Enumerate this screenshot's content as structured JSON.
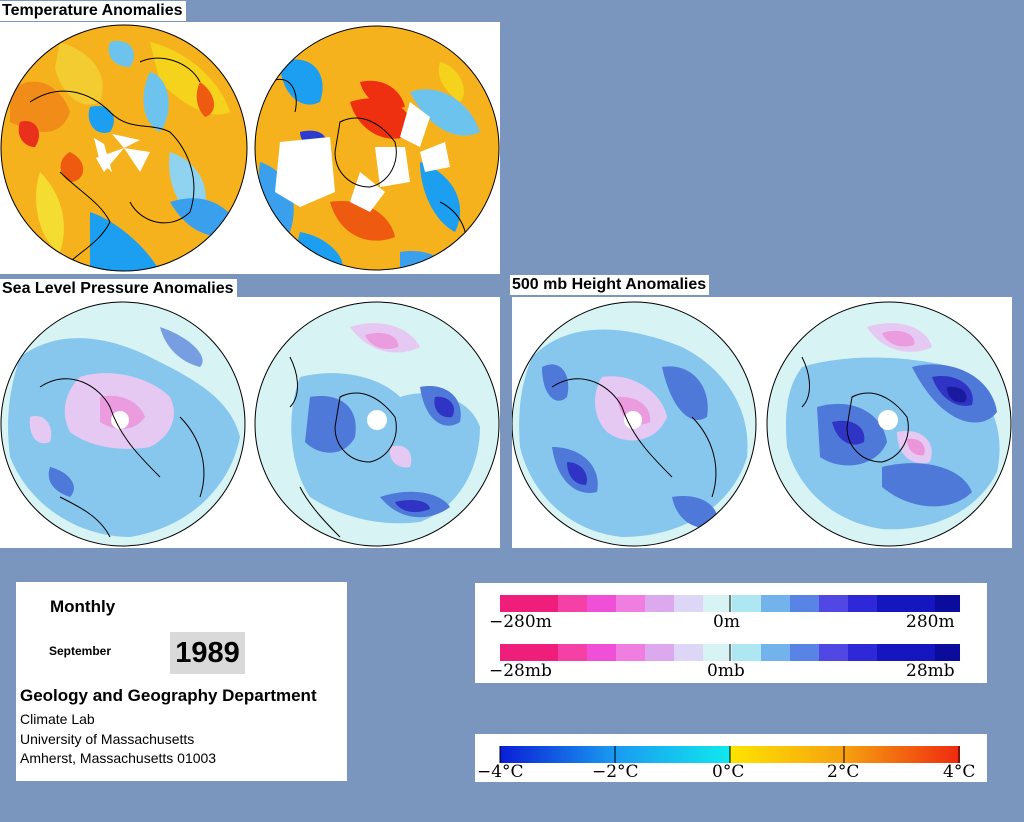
{
  "titles": {
    "temperature": "Temperature Anomalies",
    "slp": "Sea Level Pressure Anomalies",
    "height500": "500 mb Height Anomalies"
  },
  "info": {
    "frequency": "Monthly",
    "month": "September",
    "year": "1989",
    "department": "Geology and Geography Department",
    "lab": "Climate Lab",
    "university": "University of Massachusetts",
    "address": "Amherst, Massachusetts 01003"
  },
  "legends": {
    "height": {
      "left": "−280m",
      "center": "0m",
      "right": "280m"
    },
    "pressure": {
      "left": "−28mb",
      "center": "0mb",
      "right": "28mb"
    },
    "temperature": {
      "t1": "−4°C",
      "t2": "−2°C",
      "t3": "0°C",
      "t4": "2°C",
      "t5": "4°C"
    }
  },
  "colors": {
    "background": "#7a96be",
    "ocean_base": "#d8f3f3",
    "negative_light": "#87c7ee",
    "negative_mid": "#4f79d8",
    "negative_dark": "#3034c4",
    "positive_light": "#e5c9f2",
    "positive_mid": "#ee7fd0",
    "temp_warm": "#f6b21c",
    "temp_hot": "#ee2f10",
    "temp_cool": "#1c9ff0"
  }
}
